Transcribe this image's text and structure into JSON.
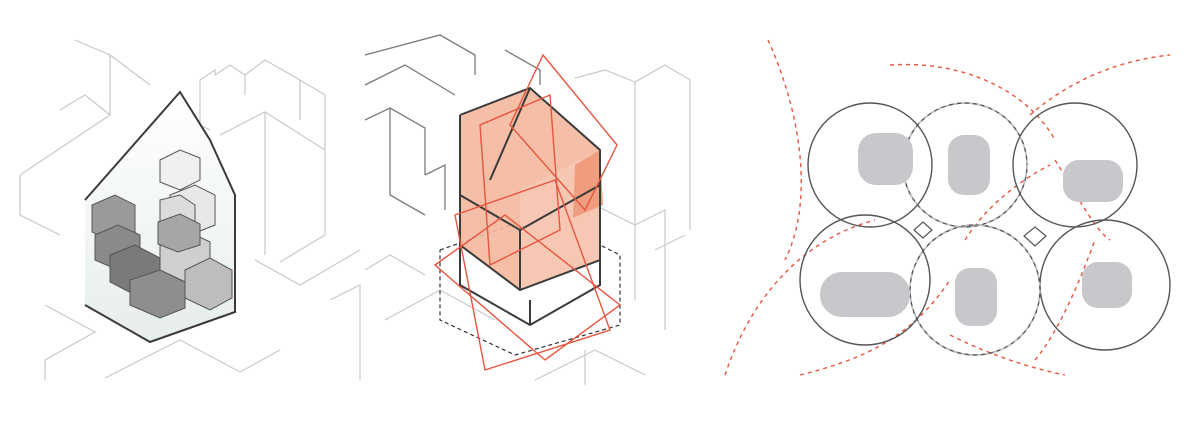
{
  "diagram": {
    "panels": [
      {
        "id": "massing",
        "description_hidden": true
      },
      {
        "id": "volume"
      },
      {
        "id": "zones",
        "zone_count": 6,
        "pod_count": 6
      }
    ],
    "colors": {
      "context_line": "#c9c9c9",
      "outline": "#3a3a3a",
      "accent_red": "#e8553f",
      "accent_fill": "#f3b79d",
      "box_gray": "#6f6f6f",
      "pod_gray": "#c8c8cc"
    }
  }
}
